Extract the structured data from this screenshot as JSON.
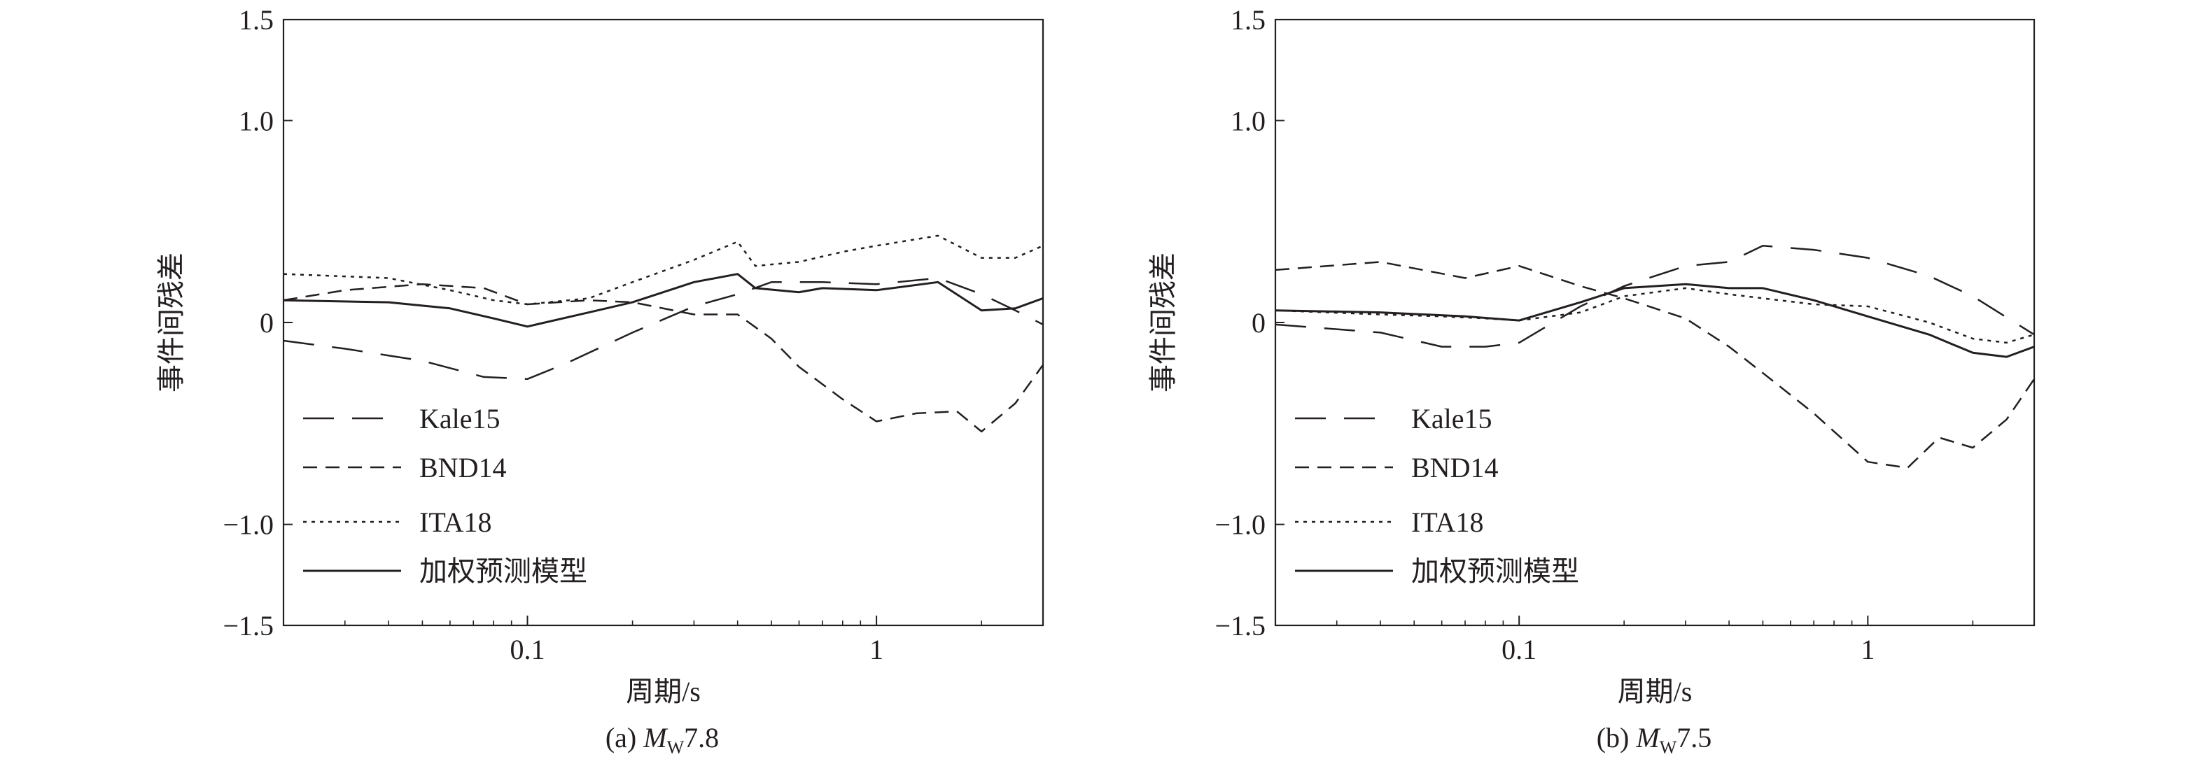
{
  "chart_data": [
    {
      "type": "line",
      "caption": {
        "prefix": "(a) ",
        "m": "M",
        "sub": "W",
        "mag": "7.8"
      },
      "xlabel": "周期/s",
      "ylabel": "事件间残差",
      "xscale": "log",
      "xlim": [
        0.02,
        3.0
      ],
      "ylim": [
        -1.5,
        1.5
      ],
      "x_ticks": [
        {
          "value": 0.1,
          "label": "0.1"
        },
        {
          "value": 1,
          "label": "1"
        }
      ],
      "y_ticks": [
        {
          "value": 1.5,
          "label": "1.5"
        },
        {
          "value": 1.0,
          "label": "1.0"
        },
        {
          "value": 0,
          "label": "0"
        },
        {
          "value": -1.0,
          "label": "−1.0"
        },
        {
          "value": -1.5,
          "label": "−1.5"
        }
      ],
      "legend_position": "lower-left",
      "grid": false,
      "series": [
        {
          "name": "Kale15",
          "dash": "long-dash",
          "points": [
            [
              0.02,
              -0.09
            ],
            [
              0.03,
              -0.13
            ],
            [
              0.05,
              -0.19
            ],
            [
              0.075,
              -0.27
            ],
            [
              0.1,
              -0.28
            ],
            [
              0.13,
              -0.2
            ],
            [
              0.2,
              -0.05
            ],
            [
              0.3,
              0.08
            ],
            [
              0.4,
              0.14
            ],
            [
              0.5,
              0.2
            ],
            [
              0.7,
              0.2
            ],
            [
              1.0,
              0.19
            ],
            [
              1.5,
              0.22
            ],
            [
              2.0,
              0.14
            ],
            [
              2.5,
              0.06
            ],
            [
              3.0,
              -0.01
            ]
          ]
        },
        {
          "name": "BND14",
          "dash": "short-dash",
          "points": [
            [
              0.02,
              0.11
            ],
            [
              0.03,
              0.16
            ],
            [
              0.05,
              0.19
            ],
            [
              0.075,
              0.17
            ],
            [
              0.1,
              0.09
            ],
            [
              0.15,
              0.11
            ],
            [
              0.2,
              0.1
            ],
            [
              0.3,
              0.04
            ],
            [
              0.4,
              0.04
            ],
            [
              0.5,
              -0.08
            ],
            [
              0.6,
              -0.22
            ],
            [
              0.8,
              -0.38
            ],
            [
              1.0,
              -0.49
            ],
            [
              1.3,
              -0.45
            ],
            [
              1.7,
              -0.44
            ],
            [
              2.0,
              -0.54
            ],
            [
              2.5,
              -0.4
            ],
            [
              3.0,
              -0.21
            ]
          ]
        },
        {
          "name": "ITA18",
          "dash": "dotted",
          "points": [
            [
              0.02,
              0.24
            ],
            [
              0.04,
              0.22
            ],
            [
              0.06,
              0.16
            ],
            [
              0.08,
              0.11
            ],
            [
              0.1,
              0.09
            ],
            [
              0.15,
              0.12
            ],
            [
              0.2,
              0.2
            ],
            [
              0.3,
              0.31
            ],
            [
              0.4,
              0.4
            ],
            [
              0.45,
              0.28
            ],
            [
              0.6,
              0.3
            ],
            [
              0.8,
              0.35
            ],
            [
              1.0,
              0.38
            ],
            [
              1.5,
              0.43
            ],
            [
              2.0,
              0.32
            ],
            [
              2.5,
              0.32
            ],
            [
              3.0,
              0.38
            ]
          ]
        },
        {
          "name": "加权预测模型",
          "dash": "solid",
          "points": [
            [
              0.02,
              0.11
            ],
            [
              0.04,
              0.1
            ],
            [
              0.06,
              0.07
            ],
            [
              0.08,
              0.02
            ],
            [
              0.1,
              -0.02
            ],
            [
              0.15,
              0.05
            ],
            [
              0.2,
              0.1
            ],
            [
              0.3,
              0.2
            ],
            [
              0.4,
              0.24
            ],
            [
              0.45,
              0.17
            ],
            [
              0.6,
              0.15
            ],
            [
              0.7,
              0.17
            ],
            [
              1.0,
              0.16
            ],
            [
              1.5,
              0.2
            ],
            [
              2.0,
              0.06
            ],
            [
              2.5,
              0.07
            ],
            [
              3.0,
              0.12
            ]
          ]
        }
      ]
    },
    {
      "type": "line",
      "caption": {
        "prefix": "(b) ",
        "m": "M",
        "sub": "W",
        "mag": "7.5"
      },
      "xlabel": "周期/s",
      "ylabel": "事件间残差",
      "xscale": "log",
      "xlim": [
        0.02,
        3.0
      ],
      "ylim": [
        -1.5,
        1.5
      ],
      "x_ticks": [
        {
          "value": 0.1,
          "label": "0.1"
        },
        {
          "value": 1,
          "label": "1"
        }
      ],
      "y_ticks": [
        {
          "value": 1.5,
          "label": "1.5"
        },
        {
          "value": 1.0,
          "label": "1.0"
        },
        {
          "value": 0,
          "label": "0"
        },
        {
          "value": -1.0,
          "label": "−1.0"
        },
        {
          "value": -1.5,
          "label": "−1.5"
        }
      ],
      "legend_position": "lower-left",
      "grid": false,
      "series": [
        {
          "name": "Kale15",
          "dash": "long-dash",
          "points": [
            [
              0.02,
              -0.01
            ],
            [
              0.04,
              -0.05
            ],
            [
              0.06,
              -0.12
            ],
            [
              0.08,
              -0.12
            ],
            [
              0.1,
              -0.1
            ],
            [
              0.15,
              0.08
            ],
            [
              0.2,
              0.18
            ],
            [
              0.3,
              0.28
            ],
            [
              0.4,
              0.3
            ],
            [
              0.5,
              0.38
            ],
            [
              0.7,
              0.36
            ],
            [
              1.0,
              0.32
            ],
            [
              1.5,
              0.23
            ],
            [
              2.0,
              0.13
            ],
            [
              3.0,
              -0.06
            ]
          ]
        },
        {
          "name": "BND14",
          "dash": "short-dash",
          "points": [
            [
              0.02,
              0.26
            ],
            [
              0.04,
              0.3
            ],
            [
              0.07,
              0.22
            ],
            [
              0.1,
              0.28
            ],
            [
              0.15,
              0.18
            ],
            [
              0.2,
              0.12
            ],
            [
              0.3,
              0.02
            ],
            [
              0.4,
              -0.12
            ],
            [
              0.5,
              -0.25
            ],
            [
              0.7,
              -0.45
            ],
            [
              1.0,
              -0.69
            ],
            [
              1.3,
              -0.72
            ],
            [
              1.6,
              -0.57
            ],
            [
              2.0,
              -0.62
            ],
            [
              2.5,
              -0.48
            ],
            [
              3.0,
              -0.28
            ]
          ]
        },
        {
          "name": "ITA18",
          "dash": "dotted",
          "points": [
            [
              0.02,
              0.06
            ],
            [
              0.04,
              0.04
            ],
            [
              0.06,
              0.03
            ],
            [
              0.08,
              0.02
            ],
            [
              0.1,
              0.01
            ],
            [
              0.15,
              0.05
            ],
            [
              0.2,
              0.13
            ],
            [
              0.3,
              0.17
            ],
            [
              0.4,
              0.14
            ],
            [
              0.5,
              0.12
            ],
            [
              0.7,
              0.09
            ],
            [
              1.0,
              0.08
            ],
            [
              1.5,
              0.0
            ],
            [
              2.0,
              -0.08
            ],
            [
              2.5,
              -0.1
            ],
            [
              3.0,
              -0.06
            ]
          ]
        },
        {
          "name": "加权预测模型",
          "dash": "solid",
          "points": [
            [
              0.02,
              0.06
            ],
            [
              0.04,
              0.05
            ],
            [
              0.07,
              0.03
            ],
            [
              0.1,
              0.01
            ],
            [
              0.15,
              0.1
            ],
            [
              0.2,
              0.17
            ],
            [
              0.3,
              0.19
            ],
            [
              0.4,
              0.17
            ],
            [
              0.5,
              0.17
            ],
            [
              0.7,
              0.11
            ],
            [
              1.0,
              0.03
            ],
            [
              1.5,
              -0.06
            ],
            [
              2.0,
              -0.15
            ],
            [
              2.5,
              -0.17
            ],
            [
              3.0,
              -0.12
            ]
          ]
        }
      ]
    }
  ]
}
